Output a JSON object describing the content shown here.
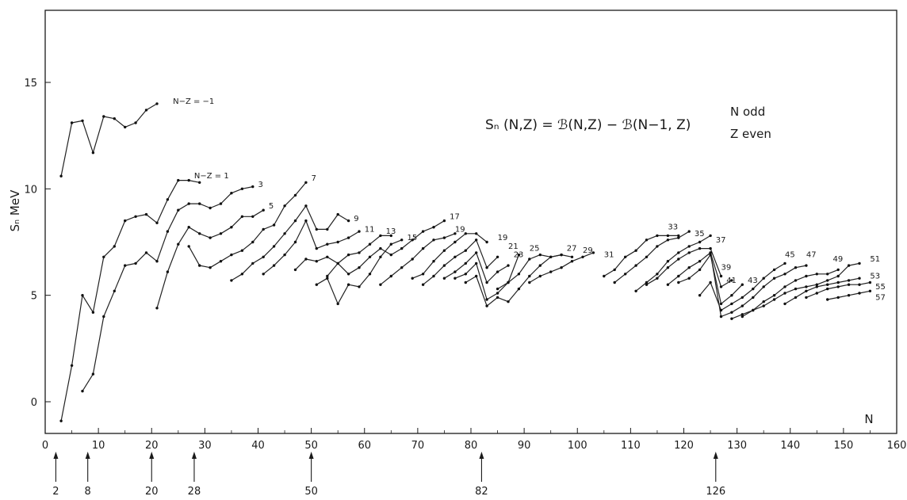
{
  "chart_data": {
    "type": "line",
    "xlabel": "N",
    "ylabel": "Sₙ MeV",
    "xlim": [
      0,
      160
    ],
    "ylim": [
      -1.3,
      18.5
    ],
    "x_ticks": [
      0,
      10,
      20,
      30,
      40,
      50,
      60,
      70,
      80,
      90,
      100,
      110,
      120,
      130,
      140,
      150,
      160
    ],
    "y_ticks": [
      0,
      5,
      10,
      15
    ],
    "grid": false,
    "annotation": {
      "formula": "Sₙ (N,Z) = ℬ(N,Z) − ℬ(N−1, Z)",
      "conditions": [
        "N  odd",
        "Z  even"
      ]
    },
    "magic_numbers": [
      2,
      8,
      20,
      28,
      50,
      82,
      126
    ],
    "series": [
      {
        "name": "N−Z = −1",
        "x": [
          3,
          5,
          7,
          9,
          11,
          13,
          15,
          17,
          19,
          21
        ],
        "y": [
          10.6,
          13.1,
          13.2,
          11.7,
          13.4,
          13.3,
          12.9,
          13.1,
          13.7,
          14.0
        ]
      },
      {
        "name": "N−Z = 1",
        "x": [
          3,
          5,
          7,
          9,
          11,
          13,
          15,
          17,
          19,
          21,
          23,
          25,
          27,
          29
        ],
        "y": [
          -0.9,
          1.7,
          5.0,
          4.2,
          6.8,
          7.3,
          8.5,
          8.7,
          8.8,
          8.4,
          9.5,
          10.4,
          10.4,
          10.3
        ]
      },
      {
        "name": "3",
        "x": [
          7,
          9,
          11,
          13,
          15,
          17,
          19,
          21,
          23,
          25,
          27,
          29,
          31,
          33,
          35,
          37,
          39
        ],
        "y": [
          0.5,
          1.3,
          4.0,
          5.2,
          6.4,
          6.5,
          7.0,
          6.6,
          8.0,
          9.0,
          9.3,
          9.3,
          9.1,
          9.3,
          9.8,
          10.0,
          10.1
        ]
      },
      {
        "name": "5",
        "x": [
          21,
          23,
          25,
          27,
          29,
          31,
          33,
          35,
          37,
          39,
          41
        ],
        "y": [
          4.4,
          6.1,
          7.4,
          8.2,
          7.9,
          7.7,
          7.9,
          8.2,
          8.7,
          8.7,
          9.0
        ]
      },
      {
        "name": "7",
        "x": [
          27,
          29,
          31,
          33,
          35,
          37,
          39,
          41,
          43,
          45,
          47,
          49
        ],
        "y": [
          7.3,
          6.4,
          6.3,
          6.6,
          6.9,
          7.1,
          7.5,
          8.1,
          8.3,
          9.2,
          9.7,
          10.3
        ]
      },
      {
        "name": "9",
        "x": [
          35,
          37,
          39,
          41,
          43,
          45,
          47,
          49,
          51,
          53,
          55,
          57
        ],
        "y": [
          5.7,
          6.0,
          6.5,
          6.8,
          7.3,
          7.9,
          8.5,
          9.2,
          8.1,
          8.1,
          8.8,
          8.5
        ]
      },
      {
        "name": "11",
        "x": [
          41,
          43,
          45,
          47,
          49,
          51,
          53,
          55,
          57,
          59
        ],
        "y": [
          6.0,
          6.4,
          6.9,
          7.5,
          8.5,
          7.2,
          7.4,
          7.5,
          7.7,
          8.0
        ]
      },
      {
        "name": "13",
        "x": [
          47,
          49,
          51,
          53,
          55,
          57,
          59,
          61,
          63,
          65
        ],
        "y": [
          6.2,
          6.7,
          6.6,
          6.8,
          6.5,
          6.9,
          7.0,
          7.4,
          7.8,
          7.8
        ]
      },
      {
        "name": "15",
        "x": [
          51,
          53,
          55,
          57,
          59,
          61,
          63,
          65,
          67
        ],
        "y": [
          5.5,
          5.8,
          4.6,
          5.5,
          5.4,
          6.0,
          6.8,
          7.4,
          7.6
        ]
      },
      {
        "name": "17",
        "x": [
          53,
          55,
          57,
          59,
          61,
          63,
          65,
          67,
          69,
          71,
          73,
          75
        ],
        "y": [
          5.9,
          6.5,
          6.0,
          6.3,
          6.8,
          7.2,
          6.9,
          7.2,
          7.6,
          8.0,
          8.2,
          8.5
        ]
      },
      {
        "name": "19",
        "x": [
          63,
          65,
          67,
          69,
          71,
          73,
          75,
          77
        ],
        "y": [
          5.5,
          5.9,
          6.3,
          6.7,
          7.2,
          7.6,
          7.7,
          7.9
        ]
      },
      {
        "name": "19b",
        "x": [
          69,
          71,
          73,
          75,
          77,
          79,
          81,
          83
        ],
        "y": [
          5.8,
          6.0,
          6.6,
          7.1,
          7.5,
          7.9,
          7.9,
          7.5
        ]
      },
      {
        "name": "21",
        "x": [
          71,
          73,
          75,
          77,
          79,
          81,
          83,
          85
        ],
        "y": [
          5.5,
          5.9,
          6.4,
          6.8,
          7.1,
          7.6,
          6.3,
          6.8
        ]
      },
      {
        "name": "23",
        "x": [
          75,
          77,
          79,
          81,
          83,
          85,
          87
        ],
        "y": [
          5.8,
          6.1,
          6.5,
          7.0,
          5.6,
          6.1,
          6.4
        ]
      },
      {
        "name": "25",
        "x": [
          77,
          79,
          81,
          83,
          85,
          87,
          89
        ],
        "y": [
          5.8,
          6.0,
          6.5,
          4.8,
          5.1,
          5.6,
          6.9
        ]
      },
      {
        "name": "27",
        "x": [
          79,
          81,
          83,
          85,
          87,
          89,
          91,
          93,
          95,
          97
        ],
        "y": [
          5.6,
          5.9,
          4.5,
          4.9,
          4.7,
          5.3,
          5.9,
          6.4,
          6.8,
          6.9
        ]
      },
      {
        "name": "29",
        "x": [
          85,
          87,
          89,
          91,
          93,
          95,
          97,
          99
        ],
        "y": [
          5.3,
          5.6,
          6.0,
          6.7,
          6.9,
          6.8,
          6.9,
          6.8
        ]
      },
      {
        "name": "31",
        "x": [
          91,
          93,
          95,
          97,
          99,
          101,
          103
        ],
        "y": [
          5.6,
          5.9,
          6.1,
          6.3,
          6.6,
          6.8,
          7.0
        ]
      },
      {
        "name": "33",
        "x": [
          105,
          107,
          109,
          111,
          113,
          115,
          117,
          119
        ],
        "y": [
          5.9,
          6.2,
          6.8,
          7.1,
          7.6,
          7.8,
          7.8,
          7.8
        ]
      },
      {
        "name": "35",
        "x": [
          107,
          109,
          111,
          113,
          115,
          117,
          119,
          121
        ],
        "y": [
          5.6,
          6.0,
          6.4,
          6.8,
          7.3,
          7.6,
          7.7,
          8.0
        ]
      },
      {
        "name": "37",
        "x": [
          111,
          113,
          115,
          117,
          119,
          121,
          123,
          125
        ],
        "y": [
          5.2,
          5.6,
          6.0,
          6.6,
          7.0,
          7.3,
          7.5,
          7.8
        ]
      },
      {
        "name": "39",
        "x": [
          113,
          115,
          117,
          119,
          121,
          123,
          125,
          127
        ],
        "y": [
          5.5,
          5.8,
          6.3,
          6.7,
          7.0,
          7.2,
          7.2,
          5.9
        ]
      },
      {
        "name": "41",
        "x": [
          117,
          119,
          121,
          123,
          125,
          127,
          129
        ],
        "y": [
          5.5,
          5.9,
          6.3,
          6.6,
          7.0,
          5.4,
          5.7
        ]
      },
      {
        "name": "43",
        "x": [
          119,
          121,
          123,
          125,
          127,
          129,
          131
        ],
        "y": [
          5.6,
          5.8,
          6.2,
          6.9,
          4.6,
          5.0,
          5.5
        ]
      },
      {
        "name": "45",
        "x": [
          123,
          125,
          127,
          129,
          131,
          133,
          135,
          137,
          139
        ],
        "y": [
          5.0,
          5.6,
          4.3,
          4.6,
          4.9,
          5.3,
          5.8,
          6.2,
          6.5
        ]
      },
      {
        "name": "47",
        "x": [
          125,
          127,
          129,
          131,
          133,
          135,
          137,
          139,
          141,
          143
        ],
        "y": [
          7.0,
          4.0,
          4.2,
          4.5,
          4.9,
          5.4,
          5.8,
          6.0,
          6.3,
          6.4
        ]
      },
      {
        "name": "49",
        "x": [
          129,
          131,
          133,
          135,
          137,
          139,
          141,
          143,
          145,
          147,
          149
        ],
        "y": [
          3.9,
          4.1,
          4.3,
          4.7,
          5.0,
          5.4,
          5.7,
          5.9,
          6.0,
          6.0,
          6.2
        ]
      },
      {
        "name": "51",
        "x": [
          131,
          133,
          135,
          137,
          139,
          141,
          143,
          145,
          147,
          149,
          151,
          153
        ],
        "y": [
          4.0,
          4.3,
          4.5,
          4.8,
          5.1,
          5.3,
          5.4,
          5.5,
          5.7,
          5.9,
          6.4,
          6.5
        ]
      },
      {
        "name": "53",
        "x": [
          139,
          141,
          143,
          145,
          147,
          149,
          151,
          153
        ],
        "y": [
          4.6,
          4.9,
          5.2,
          5.4,
          5.5,
          5.6,
          5.7,
          5.8
        ]
      },
      {
        "name": "55",
        "x": [
          143,
          145,
          147,
          149,
          151,
          153,
          155
        ],
        "y": [
          4.9,
          5.1,
          5.3,
          5.4,
          5.5,
          5.5,
          5.6
        ]
      },
      {
        "name": "57",
        "x": [
          147,
          149,
          151,
          153,
          155
        ],
        "y": [
          4.8,
          4.9,
          5.0,
          5.1,
          5.2
        ]
      }
    ],
    "curve_labels": [
      {
        "text": "N−Z = −1",
        "x": 24,
        "y": 14.1
      },
      {
        "text": "N−Z = 1",
        "x": 28,
        "y": 10.6
      },
      {
        "text": "3",
        "x": 40,
        "y": 10.2
      },
      {
        "text": "5",
        "x": 42,
        "y": 9.2
      },
      {
        "text": "7",
        "x": 50,
        "y": 10.5
      },
      {
        "text": "9",
        "x": 58,
        "y": 8.6
      },
      {
        "text": "11",
        "x": 60,
        "y": 8.1
      },
      {
        "text": "13",
        "x": 64,
        "y": 8.0
      },
      {
        "text": "15",
        "x": 68,
        "y": 7.7
      },
      {
        "text": "17",
        "x": 76,
        "y": 8.7
      },
      {
        "text": "19",
        "x": 77,
        "y": 8.1
      },
      {
        "text": "19",
        "x": 85,
        "y": 7.7
      },
      {
        "text": "21",
        "x": 87,
        "y": 7.3
      },
      {
        "text": "23",
        "x": 88,
        "y": 6.9
      },
      {
        "text": "25",
        "x": 91,
        "y": 7.2
      },
      {
        "text": "27",
        "x": 98,
        "y": 7.2
      },
      {
        "text": "29",
        "x": 101,
        "y": 7.1
      },
      {
        "text": "31",
        "x": 105,
        "y": 6.9
      },
      {
        "text": "33",
        "x": 117,
        "y": 8.2
      },
      {
        "text": "35",
        "x": 122,
        "y": 7.9
      },
      {
        "text": "37",
        "x": 126,
        "y": 7.6
      },
      {
        "text": "39",
        "x": 127,
        "y": 6.3
      },
      {
        "text": "41",
        "x": 128,
        "y": 5.7
      },
      {
        "text": "43",
        "x": 132,
        "y": 5.7
      },
      {
        "text": "45",
        "x": 139,
        "y": 6.9
      },
      {
        "text": "47",
        "x": 143,
        "y": 6.9
      },
      {
        "text": "49",
        "x": 148,
        "y": 6.7
      },
      {
        "text": "51",
        "x": 155,
        "y": 6.7
      },
      {
        "text": "53",
        "x": 155,
        "y": 5.9
      },
      {
        "text": "55",
        "x": 156,
        "y": 5.4
      },
      {
        "text": "57",
        "x": 156,
        "y": 4.9
      }
    ]
  }
}
